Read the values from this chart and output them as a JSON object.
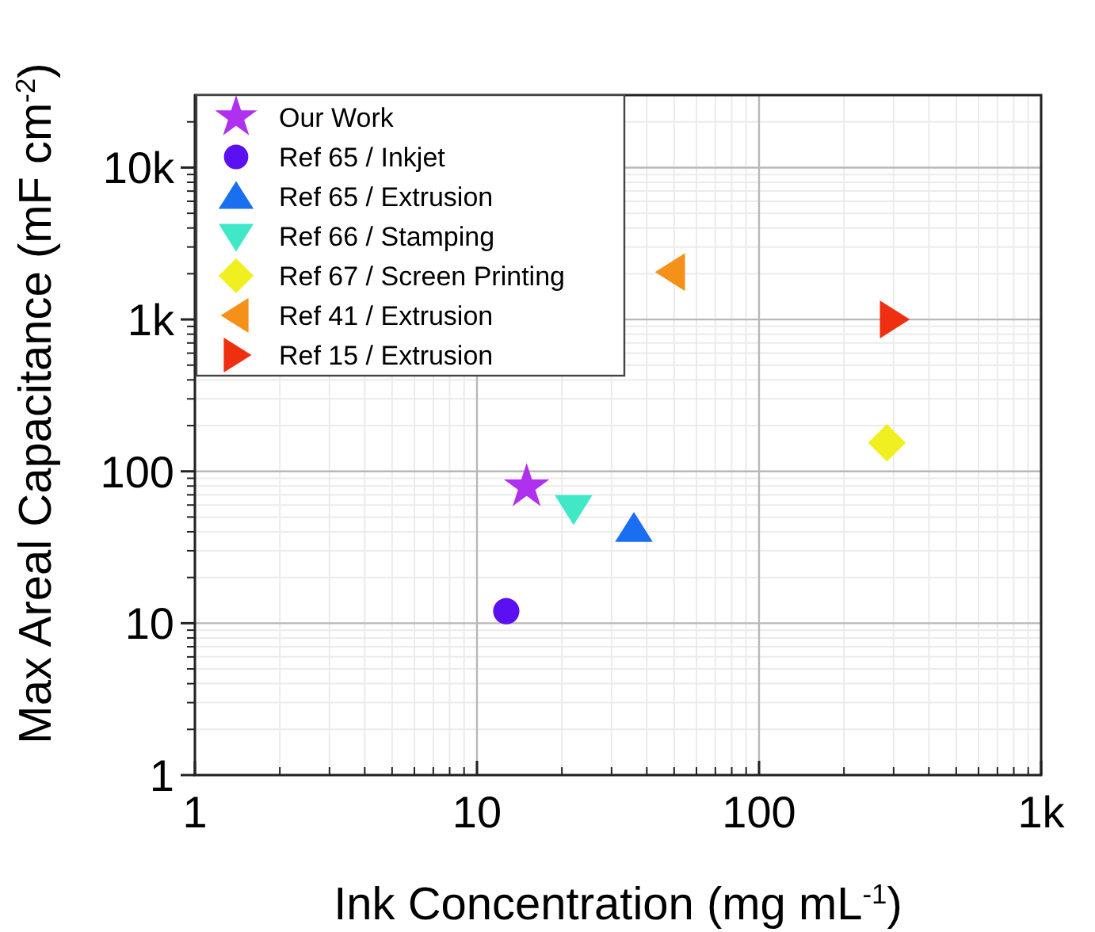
{
  "chart_data": {
    "type": "scatter",
    "xlabel": "Ink Concentration (mg mL$^{-1}$)",
    "ylabel": "Max Areal Capacitance (mF cm$^{-2}$)",
    "log": "xy",
    "xlim": [
      1,
      1000
    ],
    "ylim": [
      1,
      30000
    ],
    "xticks": [
      1,
      10,
      100,
      {
        "value": 1000,
        "label": "1k"
      }
    ],
    "yticks": [
      1,
      10,
      100,
      {
        "value": 1000,
        "label": "1k"
      },
      {
        "value": 10000,
        "label": "10k"
      }
    ],
    "grid": true,
    "legend": "top left",
    "series": [
      {
        "name": "Our Work",
        "color": "#b030f0",
        "marker": "star",
        "x": [
          15
        ],
        "values": [
          79
        ]
      },
      {
        "name": "Ref 65 / Inkjet",
        "color": "#5a10f0",
        "marker": "circle",
        "x": [
          12.7
        ],
        "values": [
          12
        ]
      },
      {
        "name": "Ref 65 / Extrusion",
        "color": "#1a6ef0",
        "marker": "triangle",
        "x": [
          36
        ],
        "values": [
          42
        ]
      },
      {
        "name": "Ref 66 / Stamping",
        "color": "#40e8c8",
        "marker": "triangle-down",
        "x": [
          22
        ],
        "values": [
          57
        ]
      },
      {
        "name": "Ref 67 / Screen Printing",
        "color": "#f0f020",
        "marker": "diamond",
        "x": [
          284
        ],
        "values": [
          154
        ]
      },
      {
        "name": "Ref 41 / Extrusion",
        "color": "#f59018",
        "marker": "triangle-left",
        "x": [
          49
        ],
        "values": [
          2050
        ]
      },
      {
        "name": "Ref 15 / Extrusion",
        "color": "#ee3010",
        "marker": "triangle-right",
        "x": [
          299
        ],
        "values": [
          1000
        ]
      }
    ]
  }
}
